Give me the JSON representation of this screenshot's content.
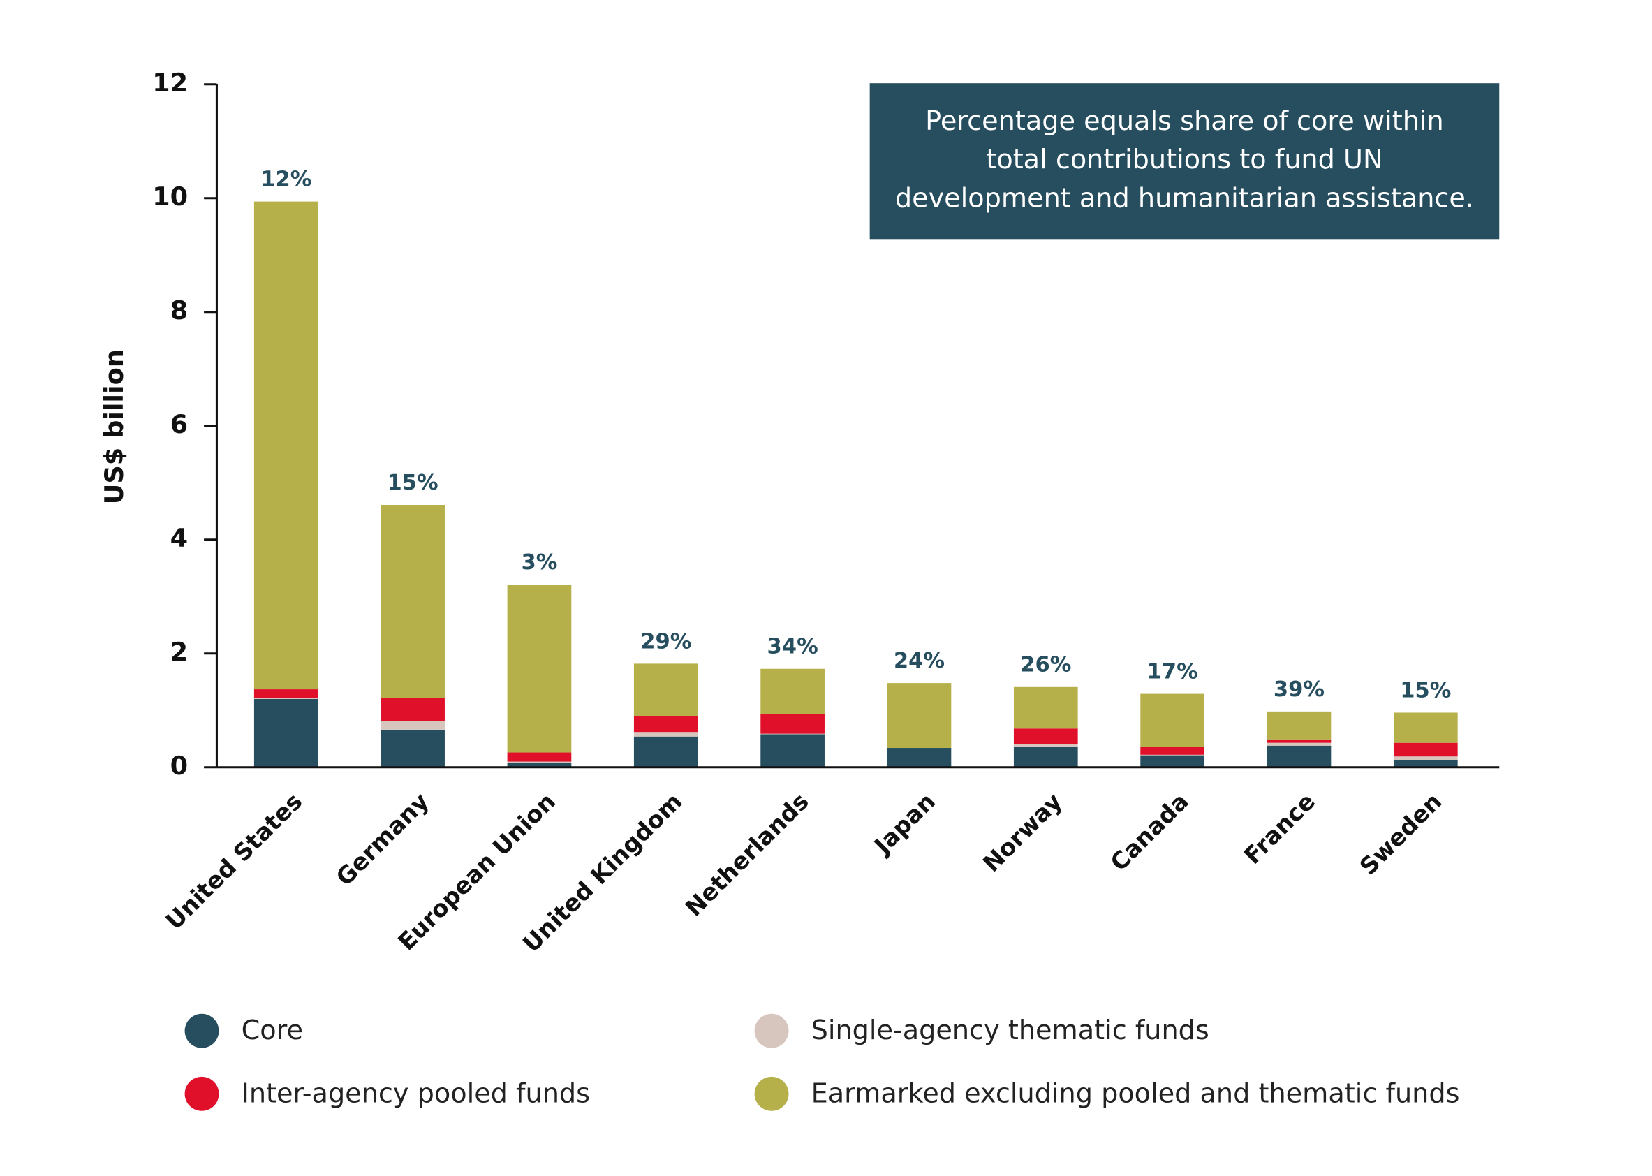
{
  "chart_data": {
    "type": "stacked_bar",
    "y_label": "US$ billion",
    "note": [
      "Percentage equals share of core within",
      "total contributions to fund UN",
      "development and humanitarian assistance."
    ],
    "categories": [
      "United States",
      "Germany",
      "European Union",
      "United Kingdom",
      "Netherlands",
      "Japan",
      "Norway",
      "Canada",
      "France",
      "Sweden"
    ],
    "series": [
      {
        "name": "Core",
        "color": "#264e5f",
        "values": [
          1.2,
          0.66,
          0.08,
          0.54,
          0.58,
          0.34,
          0.36,
          0.21,
          0.38,
          0.12
        ]
      },
      {
        "name": "Single-agency thematic funds",
        "color": "#d6c6bd",
        "values": [
          0.02,
          0.15,
          0.02,
          0.08,
          0.01,
          0,
          0.05,
          0.01,
          0.05,
          0.07
        ]
      },
      {
        "name": "Inter-agency pooled funds",
        "color": "#e0102a",
        "values": [
          0.15,
          0.41,
          0.16,
          0.28,
          0.35,
          0,
          0.27,
          0.14,
          0.06,
          0.24
        ]
      },
      {
        "name": "Earmarked excluding pooled and thematic funds",
        "color": "#b5b04a",
        "values": [
          8.57,
          3.39,
          2.95,
          0.92,
          0.79,
          1.14,
          0.73,
          0.93,
          0.49,
          0.53
        ]
      }
    ],
    "core_share_labels": [
      "12%",
      "15%",
      "3%",
      "29%",
      "34%",
      "24%",
      "26%",
      "17%",
      "39%",
      "15%"
    ],
    "ylim": [
      0,
      12
    ],
    "yticks": [
      0,
      2,
      4,
      6,
      8,
      10,
      12
    ],
    "grid": false
  }
}
